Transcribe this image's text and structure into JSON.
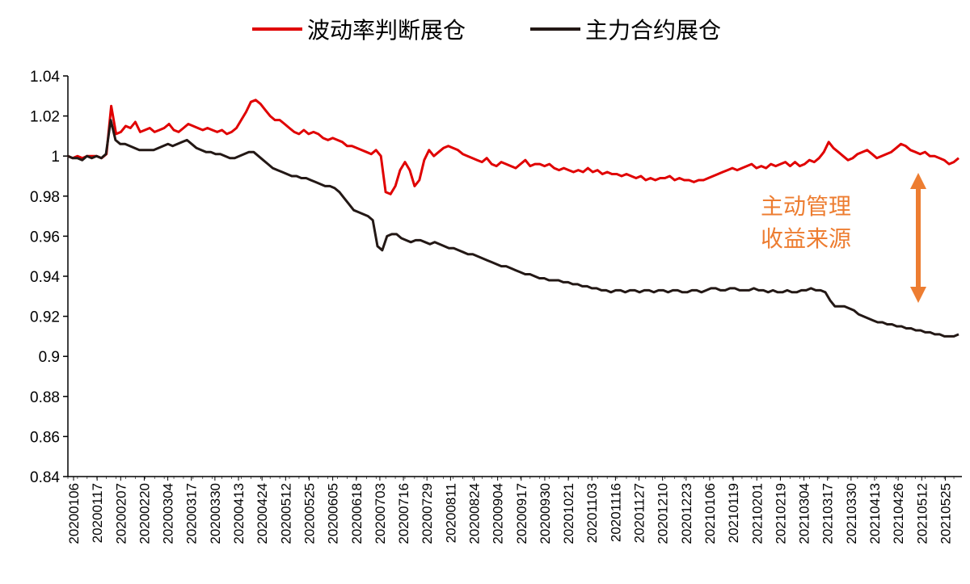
{
  "chart_data": {
    "type": "line",
    "title": "",
    "xlabel": "",
    "ylabel": "",
    "ylim": [
      0.84,
      1.04
    ],
    "yticks": [
      "0.84",
      "0.86",
      "0.88",
      "0.9",
      "0.92",
      "0.94",
      "0.96",
      "0.98",
      "1",
      "1.02",
      "1.04"
    ],
    "grid": false,
    "legend_position": "top",
    "x_tick_labels": [
      "20200106",
      "20200117",
      "20200207",
      "20200220",
      "20200304",
      "20200317",
      "20200330",
      "20200413",
      "20200424",
      "20200512",
      "20200525",
      "20200605",
      "20200618",
      "20200703",
      "20200716",
      "20200729",
      "20200811",
      "20200824",
      "20200904",
      "20200917",
      "20200930",
      "20201021",
      "20201103",
      "20201116",
      "20201127",
      "20201210",
      "20201223",
      "20210106",
      "20210119",
      "20210201",
      "20210219",
      "20210304",
      "20210317",
      "20210330",
      "20210413",
      "20210426",
      "20210512",
      "20210525"
    ],
    "series": [
      {
        "name": "波动率判断展仓",
        "color": "#E00000",
        "values": [
          1.0,
          0.999,
          1.0,
          0.999,
          1.0,
          1.0,
          1.0,
          0.999,
          1.001,
          1.025,
          1.011,
          1.012,
          1.015,
          1.014,
          1.017,
          1.012,
          1.013,
          1.014,
          1.012,
          1.013,
          1.014,
          1.016,
          1.013,
          1.012,
          1.014,
          1.016,
          1.015,
          1.014,
          1.013,
          1.014,
          1.013,
          1.012,
          1.013,
          1.011,
          1.012,
          1.014,
          1.018,
          1.022,
          1.027,
          1.028,
          1.026,
          1.023,
          1.02,
          1.018,
          1.018,
          1.016,
          1.014,
          1.012,
          1.011,
          1.013,
          1.011,
          1.012,
          1.011,
          1.009,
          1.008,
          1.009,
          1.008,
          1.007,
          1.005,
          1.005,
          1.004,
          1.003,
          1.002,
          1.001,
          1.003,
          1.0,
          0.982,
          0.981,
          0.985,
          0.993,
          0.997,
          0.993,
          0.985,
          0.988,
          0.998,
          1.003,
          1.0,
          1.002,
          1.004,
          1.005,
          1.004,
          1.003,
          1.001,
          1.0,
          0.999,
          0.998,
          0.997,
          0.999,
          0.996,
          0.995,
          0.997,
          0.996,
          0.995,
          0.994,
          0.996,
          0.998,
          0.995,
          0.996,
          0.996,
          0.995,
          0.996,
          0.994,
          0.993,
          0.994,
          0.993,
          0.992,
          0.993,
          0.992,
          0.994,
          0.992,
          0.993,
          0.991,
          0.992,
          0.991,
          0.991,
          0.99,
          0.991,
          0.99,
          0.989,
          0.99,
          0.988,
          0.989,
          0.988,
          0.989,
          0.989,
          0.99,
          0.988,
          0.989,
          0.988,
          0.988,
          0.987,
          0.988,
          0.988,
          0.989,
          0.99,
          0.991,
          0.992,
          0.993,
          0.994,
          0.993,
          0.994,
          0.995,
          0.996,
          0.994,
          0.995,
          0.994,
          0.996,
          0.995,
          0.996,
          0.997,
          0.995,
          0.997,
          0.995,
          0.996,
          0.998,
          0.997,
          0.999,
          1.002,
          1.007,
          1.004,
          1.002,
          1.0,
          0.998,
          0.999,
          1.001,
          1.002,
          1.003,
          1.001,
          0.999,
          1.0,
          1.001,
          1.002,
          1.004,
          1.006,
          1.005,
          1.003,
          1.002,
          1.001,
          1.002,
          1.0,
          1.0,
          0.999,
          0.998,
          0.996,
          0.997,
          0.999
        ]
      },
      {
        "name": "主力合约展仓",
        "color": "#231815",
        "values": [
          1.0,
          0.999,
          0.999,
          0.998,
          1.0,
          0.999,
          1.0,
          0.999,
          1.001,
          1.018,
          1.008,
          1.006,
          1.006,
          1.005,
          1.004,
          1.003,
          1.003,
          1.003,
          1.003,
          1.004,
          1.005,
          1.006,
          1.005,
          1.006,
          1.007,
          1.008,
          1.006,
          1.004,
          1.003,
          1.002,
          1.002,
          1.001,
          1.001,
          1.0,
          0.999,
          0.999,
          1.0,
          1.001,
          1.002,
          1.002,
          1.0,
          0.998,
          0.996,
          0.994,
          0.993,
          0.992,
          0.991,
          0.99,
          0.99,
          0.989,
          0.989,
          0.988,
          0.987,
          0.986,
          0.985,
          0.985,
          0.984,
          0.982,
          0.979,
          0.976,
          0.973,
          0.972,
          0.971,
          0.97,
          0.968,
          0.955,
          0.953,
          0.96,
          0.961,
          0.961,
          0.959,
          0.958,
          0.957,
          0.958,
          0.958,
          0.957,
          0.956,
          0.957,
          0.956,
          0.955,
          0.954,
          0.954,
          0.953,
          0.952,
          0.951,
          0.951,
          0.95,
          0.949,
          0.948,
          0.947,
          0.946,
          0.945,
          0.945,
          0.944,
          0.943,
          0.942,
          0.941,
          0.941,
          0.94,
          0.939,
          0.939,
          0.938,
          0.938,
          0.938,
          0.937,
          0.937,
          0.936,
          0.936,
          0.935,
          0.935,
          0.934,
          0.934,
          0.933,
          0.933,
          0.932,
          0.933,
          0.933,
          0.932,
          0.933,
          0.933,
          0.932,
          0.933,
          0.933,
          0.932,
          0.933,
          0.933,
          0.932,
          0.933,
          0.933,
          0.932,
          0.932,
          0.933,
          0.933,
          0.932,
          0.933,
          0.934,
          0.934,
          0.933,
          0.933,
          0.934,
          0.934,
          0.933,
          0.933,
          0.933,
          0.934,
          0.933,
          0.933,
          0.932,
          0.933,
          0.932,
          0.932,
          0.933,
          0.932,
          0.932,
          0.933,
          0.933,
          0.934,
          0.933,
          0.933,
          0.932,
          0.928,
          0.925,
          0.925,
          0.925,
          0.924,
          0.923,
          0.921,
          0.92,
          0.919,
          0.918,
          0.917,
          0.917,
          0.916,
          0.916,
          0.915,
          0.915,
          0.914,
          0.914,
          0.913,
          0.913,
          0.912,
          0.912,
          0.911,
          0.911,
          0.91,
          0.91,
          0.91,
          0.911
        ]
      }
    ],
    "annotation": {
      "line1": "主动管理",
      "line2": "收益来源",
      "color": "#ED7D31"
    }
  }
}
